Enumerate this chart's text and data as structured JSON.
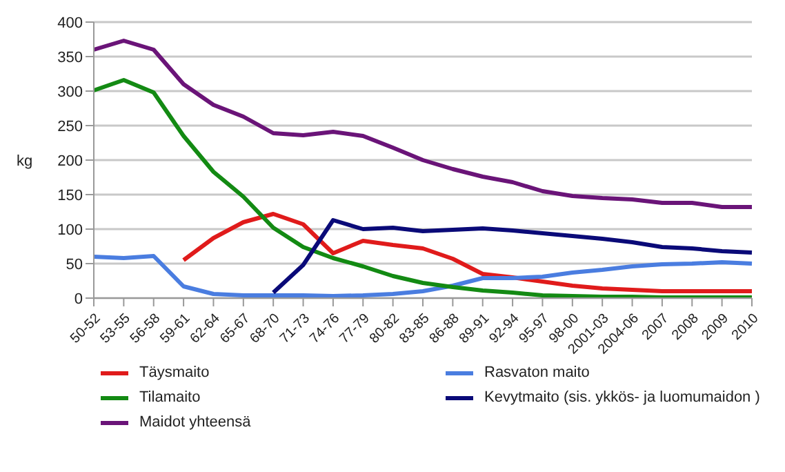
{
  "chart_data": {
    "type": "line",
    "ylabel": "kg",
    "categories": [
      "50-52",
      "53-55",
      "56-58",
      "59-61",
      "62-64",
      "65-67",
      "68-70",
      "71-73",
      "74-76",
      "77-79",
      "80-82",
      "83-85",
      "86-88",
      "89-91",
      "92-94",
      "95-97",
      "98-00",
      "2001-03",
      "2004-06",
      "2007",
      "2008",
      "2009",
      "2010"
    ],
    "series": [
      {
        "name": "Täysmaito",
        "color": "#e01b1b",
        "values": [
          null,
          null,
          null,
          55,
          87,
          110,
          122,
          107,
          65,
          83,
          77,
          72,
          57,
          35,
          30,
          24,
          18,
          14,
          12,
          10,
          10,
          10,
          10
        ]
      },
      {
        "name": "Rasvaton maito",
        "color": "#4a7de0",
        "values": [
          60,
          58,
          61,
          17,
          6,
          4,
          4,
          4,
          3,
          4,
          6,
          10,
          18,
          29,
          29,
          31,
          37,
          41,
          46,
          49,
          50,
          52,
          50
        ]
      },
      {
        "name": "Tilamaito",
        "color": "#138a13",
        "values": [
          301,
          316,
          298,
          235,
          183,
          147,
          102,
          74,
          58,
          46,
          32,
          22,
          16,
          11,
          8,
          4,
          3,
          2,
          2,
          1,
          1,
          1,
          1
        ]
      },
      {
        "name": "Kevytmaito (sis. ykkös- ja luomumaidon )",
        "color": "#0a0a78",
        "values": [
          null,
          null,
          null,
          null,
          null,
          null,
          8,
          48,
          113,
          100,
          102,
          97,
          99,
          101,
          98,
          94,
          90,
          86,
          81,
          74,
          72,
          68,
          66
        ]
      },
      {
        "name": "Maidot yhteensä",
        "color": "#6a1478",
        "values": [
          360,
          373,
          360,
          310,
          280,
          263,
          239,
          236,
          241,
          235,
          218,
          200,
          187,
          176,
          168,
          155,
          148,
          145,
          143,
          138,
          138,
          132,
          132
        ]
      }
    ],
    "ylim": [
      0,
      400
    ],
    "yticks": [
      0,
      50,
      100,
      150,
      200,
      250,
      300,
      350,
      400
    ],
    "grid": "y",
    "legend": "bottom",
    "marker": "none",
    "line_style": "solid"
  }
}
